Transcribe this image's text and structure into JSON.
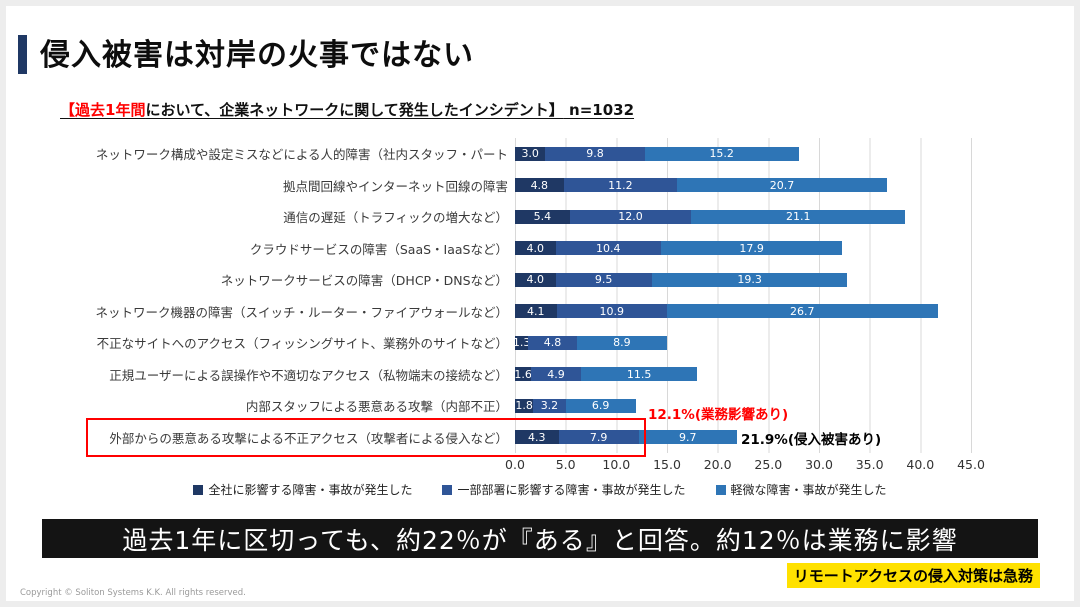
{
  "header": {
    "title": "侵入被害は対岸の火事ではない"
  },
  "subtitle": {
    "open_bracket": "【",
    "highlight": "過去1年間",
    "rest": "において、企業ネットワークに関して発生したインシデント】",
    "sample": " n=1032"
  },
  "chart_data": {
    "type": "bar",
    "orientation": "horizontal",
    "stacked": true,
    "xlim": [
      0,
      45
    ],
    "grid": true,
    "legend_position": "bottom",
    "xtick_labels": [
      "0.0",
      "5.0",
      "10.0",
      "15.0",
      "20.0",
      "25.0",
      "30.0",
      "35.0",
      "40.0",
      "45.0"
    ],
    "categories": [
      "ネットワーク構成や設定ミスなどによる人的障害（社内スタッフ・パート",
      "拠点間回線やインターネット回線の障害",
      "通信の遅延（トラフィックの増大など）",
      "クラウドサービスの障害（SaaS・IaaSなど）",
      "ネットワークサービスの障害（DHCP・DNSなど）",
      "ネットワーク機器の障害（スイッチ・ルーター・ファイアウォールなど）",
      "不正なサイトへのアクセス（フィッシングサイト、業務外のサイトなど）",
      "正規ユーザーによる誤操作や不適切なアクセス（私物端末の接続など）",
      "内部スタッフによる悪意ある攻撃（内部不正）",
      "外部からの悪意ある攻撃による不正アクセス（攻撃者による侵入など）"
    ],
    "series": [
      {
        "name": "全社に影響する障害・事故が発生した",
        "color": "#1f3864",
        "values": [
          3.0,
          4.8,
          5.4,
          4.0,
          4.0,
          4.1,
          1.3,
          1.6,
          1.8,
          4.3
        ]
      },
      {
        "name": "一部部署に影響する障害・事故が発生した",
        "color": "#2f5597",
        "values": [
          9.8,
          11.2,
          12.0,
          10.4,
          9.5,
          10.9,
          4.8,
          4.9,
          3.2,
          7.9
        ]
      },
      {
        "name": "軽微な障害・事故が発生した",
        "color": "#2e75b6",
        "values": [
          15.2,
          20.7,
          21.1,
          17.9,
          19.3,
          26.7,
          8.9,
          11.5,
          6.9,
          9.7
        ]
      }
    ],
    "annotations": [
      {
        "text": "12.1%(業務影響あり)",
        "color": "#ff0000"
      },
      {
        "text": "21.9%(侵入被害あり)",
        "color": "#000000"
      }
    ]
  },
  "banner": {
    "text": "過去1年に区切っても、約22％が『ある』と回答。約12％は業務に影響"
  },
  "callout": {
    "text": "リモートアクセスの侵入対策は急務",
    "bg": "#ffe100"
  },
  "footer": {
    "copyright": "Copyright © Soliton Systems K.K. All rights reserved."
  }
}
